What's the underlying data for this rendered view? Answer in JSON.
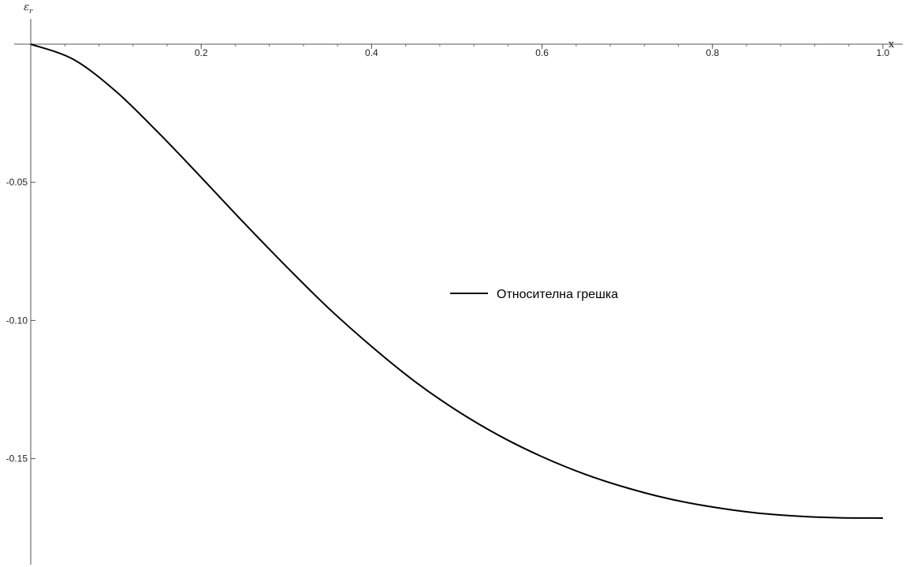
{
  "chart_data": {
    "type": "line",
    "xlabel": "x",
    "ylabel": "εr",
    "ylabel_main": "ε",
    "ylabel_sub": "r",
    "xlim": [
      0,
      1.0
    ],
    "ylim": [
      -0.1875,
      0.0
    ],
    "x_ticks": [
      {
        "value": 0.2,
        "label": "0.2"
      },
      {
        "value": 0.4,
        "label": "0.4"
      },
      {
        "value": 0.6,
        "label": "0.6"
      },
      {
        "value": 0.8,
        "label": "0.8"
      },
      {
        "value": 1.0,
        "label": "1.0"
      }
    ],
    "y_ticks": [
      {
        "value": -0.05,
        "label": "-0.05"
      },
      {
        "value": -0.1,
        "label": "-0.10"
      },
      {
        "value": -0.15,
        "label": "-0.15"
      }
    ],
    "legend": {
      "placement": "center-right"
    },
    "series": [
      {
        "name": "Относителна грешка",
        "color": "#000000",
        "x": [
          0.0,
          0.05,
          0.1,
          0.15,
          0.2,
          0.25,
          0.3,
          0.35,
          0.4,
          0.45,
          0.5,
          0.55,
          0.6,
          0.65,
          0.7,
          0.75,
          0.8,
          0.85,
          0.9,
          0.95,
          1.0
        ],
        "y": [
          0.0,
          -0.0055,
          -0.0171,
          -0.0321,
          -0.0482,
          -0.0646,
          -0.0805,
          -0.0957,
          -0.1094,
          -0.1219,
          -0.1326,
          -0.1417,
          -0.1493,
          -0.1556,
          -0.1606,
          -0.1646,
          -0.1675,
          -0.1696,
          -0.1708,
          -0.1714,
          -0.1715
        ]
      }
    ]
  }
}
